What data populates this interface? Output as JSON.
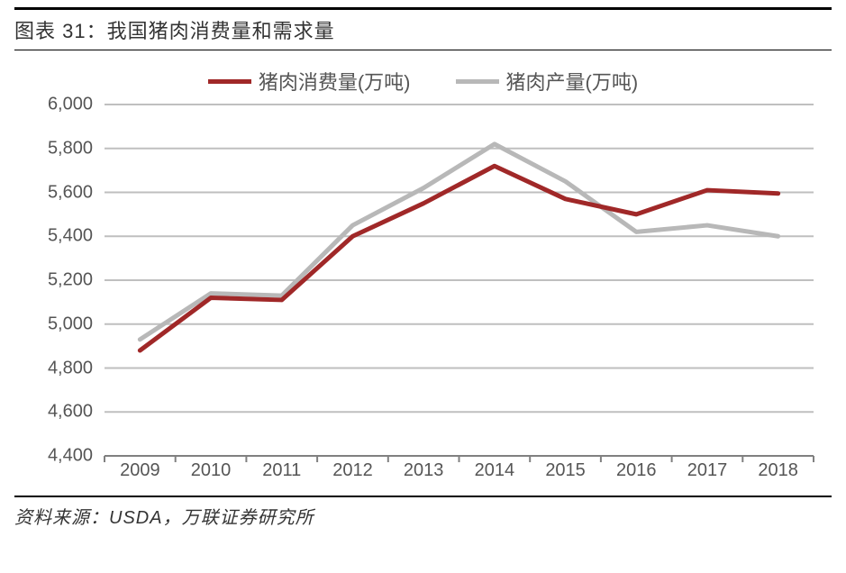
{
  "header": {
    "title": "图表 31：我国猪肉消费量和需求量"
  },
  "legend": {
    "series1": {
      "label": "猪肉消费量(万吨)",
      "color": "#a02828"
    },
    "series2": {
      "label": "猪肉产量(万吨)",
      "color": "#b8b8b8"
    }
  },
  "chart": {
    "type": "line",
    "background_color": "#ffffff",
    "grid_color": "#bfbfbf",
    "axis_color": "#808080",
    "tick_color": "#808080",
    "font_color": "#555555",
    "label_fontsize": 20,
    "x": {
      "categories": [
        "2009",
        "2010",
        "2011",
        "2012",
        "2013",
        "2014",
        "2015",
        "2016",
        "2017",
        "2018"
      ]
    },
    "y": {
      "min": 4400,
      "max": 6000,
      "step": 200,
      "ticks": [
        "4,400",
        "4,600",
        "4,800",
        "5,000",
        "5,200",
        "5,400",
        "5,600",
        "5,800",
        "6,000"
      ]
    },
    "series": [
      {
        "name": "猪肉产量(万吨)",
        "color": "#b8b8b8",
        "line_width": 5,
        "values": [
          4930,
          5140,
          5130,
          5450,
          5620,
          5820,
          5650,
          5420,
          5450,
          5400
        ]
      },
      {
        "name": "猪肉消费量(万吨)",
        "color": "#a02828",
        "line_width": 5,
        "values": [
          4880,
          5120,
          5110,
          5400,
          5550,
          5720,
          5570,
          5500,
          5610,
          5595
        ]
      }
    ]
  },
  "footer": {
    "text": "资料来源：USDA，万联证券研究所"
  }
}
